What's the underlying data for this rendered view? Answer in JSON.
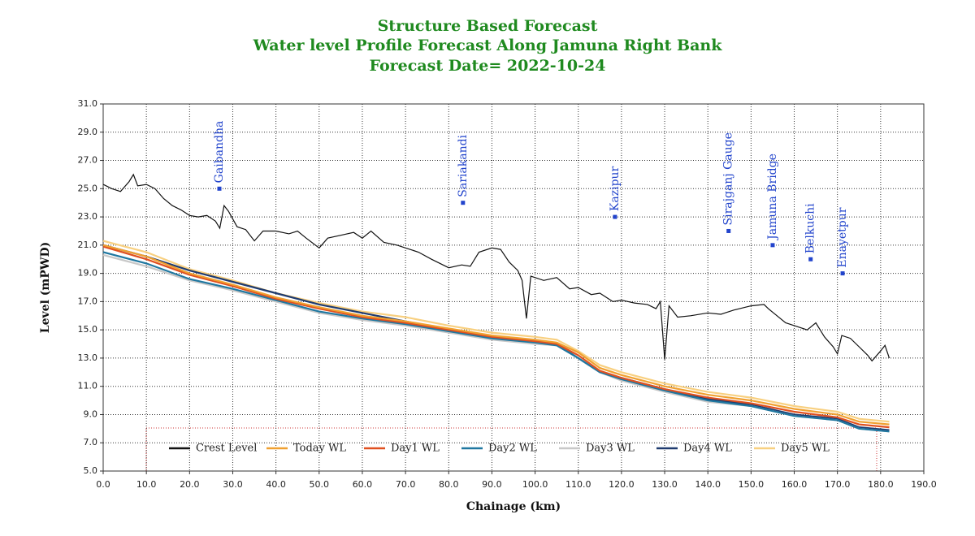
{
  "chart_data": {
    "type": "line",
    "title": [
      "Structure Based Forecast",
      "Water level Profile Forecast Along Jamuna Right Bank",
      "Forecast Date= 2022-10-24"
    ],
    "x_label": "Chainage (km)",
    "y_label": "Level (mPWD)",
    "xlim": [
      0,
      190
    ],
    "ylim": [
      5,
      31
    ],
    "xticks": [
      {
        "value": 0,
        "label": "0.0"
      },
      {
        "value": 10,
        "label": "10.0"
      },
      {
        "value": 20,
        "label": "20.0"
      },
      {
        "value": 30,
        "label": "30.0"
      },
      {
        "value": 40,
        "label": "40.0"
      },
      {
        "value": 50,
        "label": "50.0"
      },
      {
        "value": 60,
        "label": "60.0"
      },
      {
        "value": 70,
        "label": "70.0"
      },
      {
        "value": 80,
        "label": "80.0"
      },
      {
        "value": 90,
        "label": "90.0"
      },
      {
        "value": 100,
        "label": "100.0"
      },
      {
        "value": 110,
        "label": "110.0"
      },
      {
        "value": 120,
        "label": "120.0"
      },
      {
        "value": 130,
        "label": "130.0"
      },
      {
        "value": 140,
        "label": "140.0"
      },
      {
        "value": 150,
        "label": "150.0"
      },
      {
        "value": 160,
        "label": "160.0"
      },
      {
        "value": 170,
        "label": "170.0"
      },
      {
        "value": 180,
        "label": "180.0"
      },
      {
        "value": 190,
        "label": "190.0"
      }
    ],
    "yticks": [
      {
        "value": 5,
        "label": "5.0"
      },
      {
        "value": 7,
        "label": "7.0"
      },
      {
        "value": 9,
        "label": "9.0"
      },
      {
        "value": 11,
        "label": "11.0"
      },
      {
        "value": 13,
        "label": "13.0"
      },
      {
        "value": 15,
        "label": "15.0"
      },
      {
        "value": 17,
        "label": "17.0"
      },
      {
        "value": 19,
        "label": "19.0"
      },
      {
        "value": 21,
        "label": "21.0"
      },
      {
        "value": 23,
        "label": "23.0"
      },
      {
        "value": 25,
        "label": "25.0"
      },
      {
        "value": 27,
        "label": "27.0"
      },
      {
        "value": 29,
        "label": "29.0"
      },
      {
        "value": 31,
        "label": "31.0"
      }
    ],
    "grid": true,
    "legend": "lower center",
    "series": [
      {
        "name": "Crest Level",
        "color": "#111111",
        "x": [
          0,
          2,
          4,
          6,
          7,
          8,
          10,
          12,
          14,
          16,
          18,
          20,
          22,
          24,
          26,
          27,
          28,
          29,
          31,
          33,
          35,
          37,
          40,
          43,
          45,
          47,
          50,
          52,
          55,
          58,
          60,
          62,
          65,
          68,
          70,
          73,
          76,
          80,
          83,
          85,
          87,
          90,
          92,
          94,
          96,
          97,
          98,
          99,
          102,
          105,
          108,
          110,
          113,
          115,
          118,
          120,
          123,
          126,
          128,
          129,
          130,
          131,
          133,
          136,
          140,
          143,
          146,
          150,
          153,
          154,
          156,
          158,
          160,
          163,
          165,
          167,
          169,
          170,
          171,
          173,
          175,
          177,
          178,
          180,
          181,
          182
        ],
        "values": [
          25.3,
          25.0,
          24.8,
          25.5,
          26.0,
          25.2,
          25.3,
          25.0,
          24.3,
          23.8,
          23.5,
          23.1,
          23.0,
          23.1,
          22.7,
          22.2,
          23.8,
          23.4,
          22.3,
          22.1,
          21.3,
          22.0,
          22.0,
          21.8,
          22.0,
          21.5,
          20.8,
          21.5,
          21.7,
          21.9,
          21.5,
          22.0,
          21.2,
          21.0,
          20.8,
          20.5,
          20.0,
          19.4,
          19.6,
          19.5,
          20.5,
          20.8,
          20.7,
          19.8,
          19.2,
          18.5,
          15.8,
          18.8,
          18.5,
          18.7,
          17.9,
          18.0,
          17.5,
          17.6,
          17.0,
          17.1,
          16.9,
          16.8,
          16.5,
          17.0,
          12.9,
          16.7,
          15.9,
          16.0,
          16.2,
          16.1,
          16.4,
          16.7,
          16.8,
          16.5,
          16.0,
          15.5,
          15.3,
          15.0,
          15.5,
          14.5,
          13.8,
          13.3,
          14.6,
          14.4,
          13.8,
          13.2,
          12.8,
          13.5,
          13.9,
          13.0
        ]
      },
      {
        "name": "Today WL",
        "color": "#f0a030",
        "x": [
          0,
          10,
          20,
          30,
          40,
          50,
          60,
          70,
          80,
          90,
          100,
          105,
          110,
          115,
          120,
          130,
          140,
          150,
          160,
          170,
          175,
          182
        ],
        "values": [
          21.0,
          20.2,
          19.0,
          18.2,
          17.3,
          16.6,
          16.0,
          15.6,
          15.1,
          14.6,
          14.3,
          14.1,
          13.4,
          12.3,
          11.8,
          11.0,
          10.4,
          10.0,
          9.4,
          9.0,
          8.5,
          8.3
        ]
      },
      {
        "name": "Day1 WL",
        "color": "#e05020",
        "x": [
          0,
          10,
          20,
          30,
          40,
          50,
          60,
          70,
          80,
          90,
          100,
          105,
          110,
          115,
          120,
          130,
          140,
          150,
          160,
          170,
          175,
          182
        ],
        "values": [
          20.9,
          20.0,
          18.9,
          18.1,
          17.2,
          16.5,
          15.9,
          15.5,
          15.0,
          14.5,
          14.2,
          14.0,
          13.2,
          12.1,
          11.6,
          10.8,
          10.2,
          9.8,
          9.2,
          8.8,
          8.3,
          8.1
        ]
      },
      {
        "name": "Day2 WL",
        "color": "#1f77a0",
        "x": [
          0,
          10,
          20,
          30,
          40,
          50,
          60,
          70,
          80,
          90,
          100,
          105,
          110,
          115,
          120,
          130,
          140,
          150,
          160,
          170,
          175,
          182
        ],
        "values": [
          20.5,
          19.7,
          18.6,
          17.9,
          17.1,
          16.3,
          15.8,
          15.4,
          14.9,
          14.4,
          14.1,
          13.9,
          13.0,
          12.0,
          11.5,
          10.7,
          10.0,
          9.6,
          8.9,
          8.6,
          8.0,
          7.8
        ]
      },
      {
        "name": "Day3 WL",
        "color": "#c8c8c8",
        "x": [
          0,
          10,
          20,
          30,
          40,
          50,
          60,
          70,
          80,
          90,
          100,
          105,
          110,
          115,
          120,
          130,
          140,
          150,
          160,
          170,
          175,
          182
        ],
        "values": [
          20.3,
          19.5,
          18.5,
          17.8,
          17.0,
          16.2,
          15.7,
          15.3,
          14.8,
          14.3,
          14.0,
          13.9,
          13.0,
          12.0,
          11.4,
          10.6,
          9.9,
          9.6,
          8.9,
          8.6,
          8.0,
          7.8
        ]
      },
      {
        "name": "Day4 WL",
        "color": "#1f3b6f",
        "x": [
          0,
          10,
          20,
          30,
          40,
          50,
          60,
          70,
          80,
          90,
          100,
          105,
          110,
          115,
          120,
          130,
          140,
          150,
          160,
          170,
          175,
          182
        ],
        "values": [
          21.0,
          20.2,
          19.2,
          18.4,
          17.6,
          16.8,
          16.2,
          15.6,
          15.0,
          14.5,
          14.2,
          14.0,
          13.0,
          12.0,
          11.6,
          10.8,
          10.1,
          9.7,
          9.0,
          8.7,
          8.1,
          7.9
        ]
      },
      {
        "name": "Day5 WL",
        "color": "#f8d080",
        "x": [
          0,
          10,
          20,
          30,
          40,
          50,
          60,
          70,
          80,
          90,
          100,
          105,
          110,
          115,
          120,
          130,
          140,
          150,
          160,
          170,
          175,
          182
        ],
        "values": [
          21.3,
          20.5,
          19.3,
          18.5,
          17.6,
          16.9,
          16.3,
          15.9,
          15.3,
          14.8,
          14.5,
          14.3,
          13.5,
          12.5,
          12.0,
          11.2,
          10.6,
          10.2,
          9.6,
          9.2,
          8.7,
          8.5
        ]
      }
    ],
    "annotations": [
      {
        "label": "Gaibandha",
        "x": 26.9,
        "y": 25.0,
        "color": "#2244cc"
      },
      {
        "label": "Sariakandi",
        "x": 83.3,
        "y": 24.0,
        "color": "#2244cc"
      },
      {
        "label": "Kazipur",
        "x": 118.5,
        "y": 23.0,
        "color": "#2244cc"
      },
      {
        "label": "Sirajganj Gauge",
        "x": 144.8,
        "y": 22.0,
        "color": "#2244cc"
      },
      {
        "label": "Jamuna Bridge",
        "x": 155.0,
        "y": 21.0,
        "color": "#2244cc"
      },
      {
        "label": "Belkuchi",
        "x": 163.8,
        "y": 20.0,
        "color": "#2244cc"
      },
      {
        "label": "Enayetpur",
        "x": 171.2,
        "y": 19.0,
        "color": "#2244cc"
      }
    ]
  }
}
